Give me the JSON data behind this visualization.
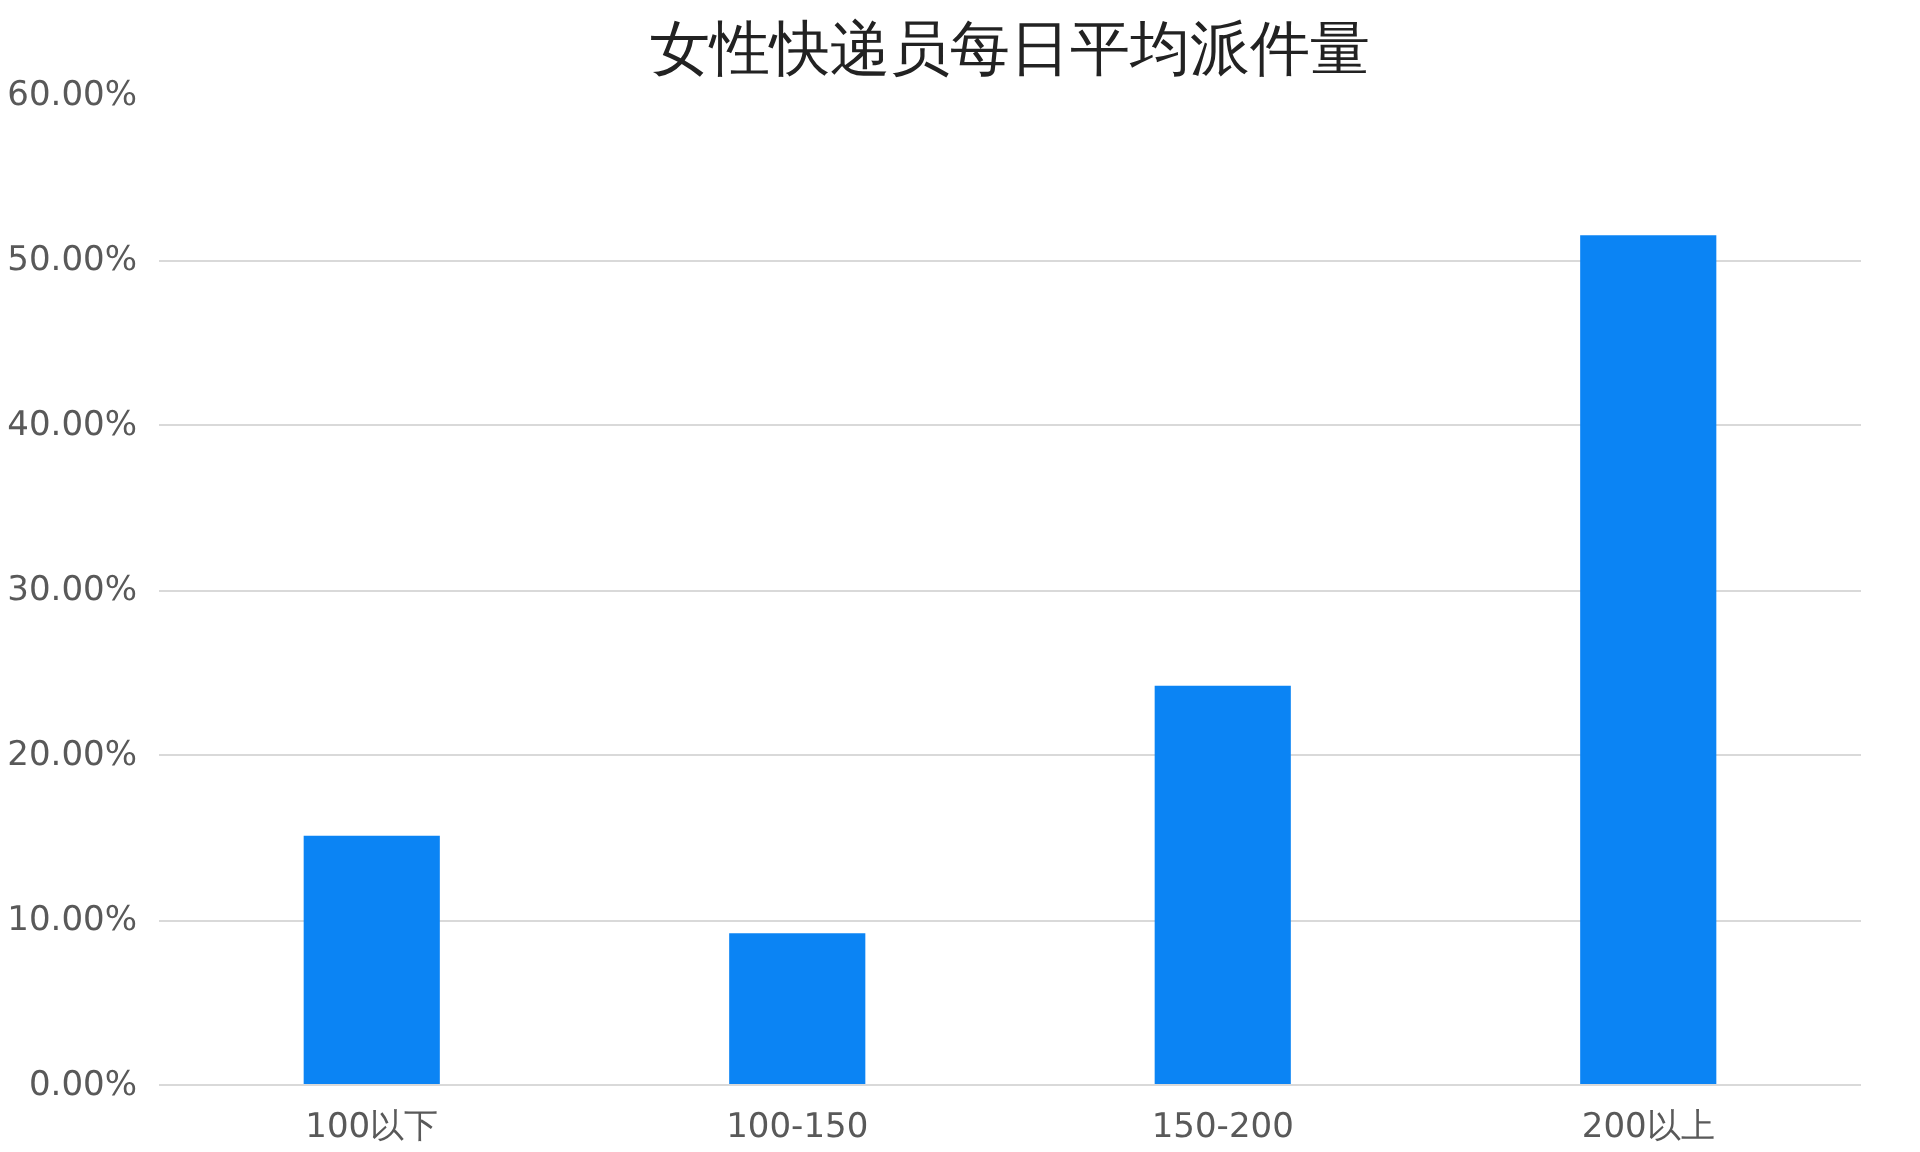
{
  "chart_data": {
    "type": "bar",
    "title": "女性快递员每日平均派件量",
    "categories": [
      "100以下",
      "100-150",
      "150-200",
      "200以上"
    ],
    "values": [
      15.1,
      9.2,
      24.2,
      51.5
    ],
    "color": "#0b84f4",
    "ylim": [
      0,
      60
    ],
    "yticks": [
      {
        "value": 0,
        "label": "0.00%"
      },
      {
        "value": 10,
        "label": "10.00%"
      },
      {
        "value": 20,
        "label": "20.00%"
      },
      {
        "value": 30,
        "label": "30.00%"
      },
      {
        "value": 40,
        "label": "40.00%"
      },
      {
        "value": 50,
        "label": "50.00%"
      },
      {
        "value": 60,
        "label": "60.00%"
      }
    ],
    "grid": "y"
  }
}
